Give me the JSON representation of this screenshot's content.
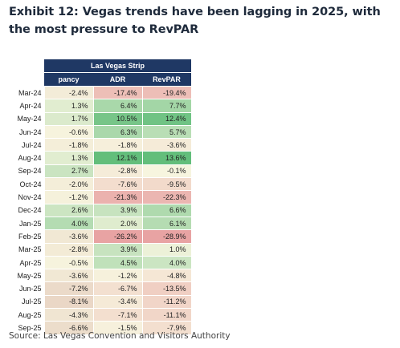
{
  "title": "Exhibit 12: Vegas trends have been lagging in 2025, with the most pressure to RevPAR",
  "source": "Source: Las Vegas Convention and Visitors Authority",
  "chart_data": {
    "type": "table",
    "group_header": "Las Vegas Strip",
    "columns": [
      "pancy",
      "ADR",
      "RevPAR"
    ],
    "rows": [
      {
        "label": "Mar-24",
        "values": [
          "-2.4%",
          "-17.4%",
          "-19.4%"
        ]
      },
      {
        "label": "Apr-24",
        "values": [
          "1.3%",
          "6.4%",
          "7.7%"
        ]
      },
      {
        "label": "May-24",
        "values": [
          "1.7%",
          "10.5%",
          "12.4%"
        ]
      },
      {
        "label": "Jun-24",
        "values": [
          "-0.6%",
          "6.3%",
          "5.7%"
        ]
      },
      {
        "label": "Jul-24",
        "values": [
          "-1.8%",
          "-1.8%",
          "-3.6%"
        ]
      },
      {
        "label": "Aug-24",
        "values": [
          "1.3%",
          "12.1%",
          "13.6%"
        ]
      },
      {
        "label": "Sep-24",
        "values": [
          "2.7%",
          "-2.8%",
          "-0.1%"
        ]
      },
      {
        "label": "Oct-24",
        "values": [
          "-2.0%",
          "-7.6%",
          "-9.5%"
        ]
      },
      {
        "label": "Nov-24",
        "values": [
          "-1.2%",
          "-21.3%",
          "-22.3%"
        ]
      },
      {
        "label": "Dec-24",
        "values": [
          "2.6%",
          "3.9%",
          "6.6%"
        ]
      },
      {
        "label": "Jan-25",
        "values": [
          "4.0%",
          "2.0%",
          "6.1%"
        ]
      },
      {
        "label": "Feb-25",
        "values": [
          "-3.6%",
          "-26.2%",
          "-28.9%"
        ]
      },
      {
        "label": "Mar-25",
        "values": [
          "-2.8%",
          "3.9%",
          "1.0%"
        ]
      },
      {
        "label": "Apr-25",
        "values": [
          "-0.5%",
          "4.5%",
          "4.0%"
        ]
      },
      {
        "label": "May-25",
        "values": [
          "-3.6%",
          "-1.2%",
          "-4.8%"
        ]
      },
      {
        "label": "Jun-25",
        "values": [
          "-7.2%",
          "-6.7%",
          "-13.5%"
        ]
      },
      {
        "label": "Jul-25",
        "values": [
          "-8.1%",
          "-3.4%",
          "-11.2%"
        ]
      },
      {
        "label": "Aug-25",
        "values": [
          "-4.3%",
          "-7.1%",
          "-11.1%"
        ]
      },
      {
        "label": "Sep-25",
        "values": [
          "-6.6%",
          "-1.5%",
          "-7.9%"
        ]
      }
    ],
    "colors": {
      "header": "#1f3864",
      "positive_max": "#63be7b",
      "negative_max": "#e8a3a3",
      "neutral": "#f7f5df"
    }
  }
}
